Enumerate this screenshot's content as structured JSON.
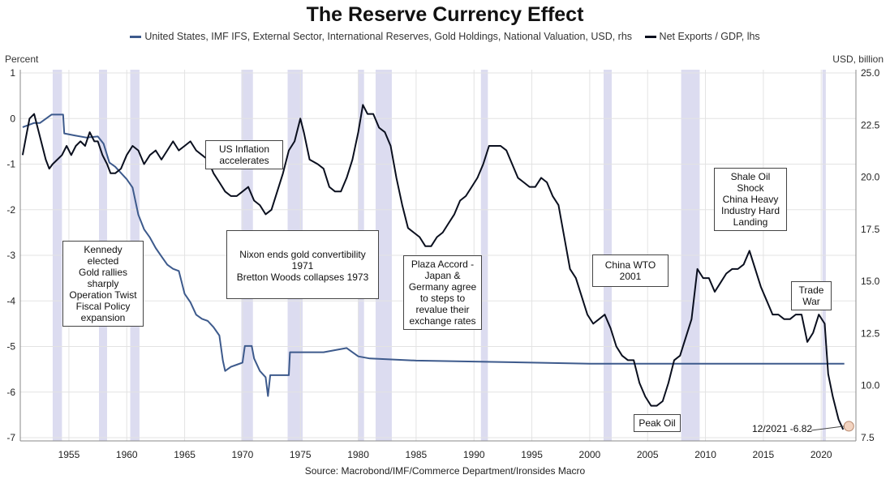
{
  "title": "The Reserve Currency Effect",
  "legend": {
    "series1": "United States, IMF IFS, External Sector, International Reserves, Gold Holdings, National Valuation, USD, rhs",
    "series2": "Net Exports / GDP, lhs"
  },
  "axes": {
    "left_unit": "Percent",
    "right_unit": "USD, billion",
    "left_ticks": [
      "1",
      "0",
      "-1",
      "-2",
      "-3",
      "-4",
      "-5",
      "-6",
      "-7"
    ],
    "right_ticks": [
      "25.0",
      "22.5",
      "20.0",
      "17.5",
      "15.0",
      "12.5",
      "10.0",
      "7.5"
    ],
    "x_ticks": [
      "1955",
      "1960",
      "1965",
      "1970",
      "1975",
      "1980",
      "1985",
      "1990",
      "1995",
      "2000",
      "2005",
      "2010",
      "2015",
      "2020"
    ]
  },
  "source": "Source: Macrobond/IMF/Commerce Department/Ironsides Macro",
  "annotations": {
    "kennedy": [
      "Kennedy elected",
      "Gold rallies",
      "sharply",
      "Operation Twist",
      "Fiscal Policy",
      "expansion"
    ],
    "inflation": [
      "US Inflation",
      "accelerates"
    ],
    "nixon": [
      "Nixon ends gold convertibility",
      "1971",
      "Bretton Woods collapses 1973"
    ],
    "plaza": [
      "Plaza Accord -",
      "Japan &",
      "Germany agree",
      "to steps to",
      "revalue their",
      "exchange rates"
    ],
    "china_wto": [
      "China WTO",
      "2001"
    ],
    "shale": [
      "Shale Oil",
      "Shock",
      "China Heavy",
      "Industry Hard",
      "Landing"
    ],
    "trade_war": [
      "Trade",
      "War"
    ],
    "peak_oil": [
      "Peak Oil"
    ],
    "end_label": "12/2021 -6.82"
  },
  "colors": {
    "gold_series": "#3d5a8c",
    "net_exports_series": "#0a0f1e",
    "recession_band": "#dcdcf0",
    "grid": "#e3e3e3",
    "end_marker": "#f2d3c0"
  },
  "chart_data": {
    "type": "line",
    "title": "The Reserve Currency Effect",
    "x_range": [
      1950.8,
      2023.0
    ],
    "left_ylim": [
      -7,
      1
    ],
    "right_ylim": [
      7.5,
      25.0
    ],
    "left_label": "Percent",
    "right_label": "USD, billion",
    "grid": true,
    "legend_position": "top",
    "recession_bands": [
      [
        1953.6,
        1954.4
      ],
      [
        1957.6,
        1958.3
      ],
      [
        1960.3,
        1961.1
      ],
      [
        1969.9,
        1970.9
      ],
      [
        1973.9,
        1975.2
      ],
      [
        1980.0,
        1980.5
      ],
      [
        1981.5,
        1982.9
      ],
      [
        1990.6,
        1991.2
      ],
      [
        2001.2,
        2001.9
      ],
      [
        2007.9,
        2009.5
      ],
      [
        2020.1,
        2020.4
      ]
    ],
    "series": [
      {
        "name": "United States, IMF IFS, External Sector, International Reserves, Gold Holdings, National Valuation, USD, rhs",
        "axis": "right",
        "points": [
          [
            1951.0,
            22.4
          ],
          [
            1952.0,
            22.6
          ],
          [
            1952.5,
            22.6
          ],
          [
            1953.5,
            23.0
          ],
          [
            1954.5,
            23.0
          ],
          [
            1954.6,
            22.1
          ],
          [
            1955.5,
            22.0
          ],
          [
            1956.5,
            21.9
          ],
          [
            1957.5,
            21.95
          ],
          [
            1958.0,
            21.6
          ],
          [
            1958.5,
            20.7
          ],
          [
            1959.0,
            20.5
          ],
          [
            1959.5,
            20.2
          ],
          [
            1960.0,
            19.9
          ],
          [
            1960.5,
            19.5
          ],
          [
            1961.0,
            18.2
          ],
          [
            1961.5,
            17.5
          ],
          [
            1962.0,
            17.1
          ],
          [
            1962.5,
            16.6
          ],
          [
            1963.0,
            16.2
          ],
          [
            1963.5,
            15.8
          ],
          [
            1964.0,
            15.6
          ],
          [
            1964.5,
            15.5
          ],
          [
            1965.0,
            14.4
          ],
          [
            1965.5,
            14.0
          ],
          [
            1966.0,
            13.4
          ],
          [
            1966.5,
            13.2
          ],
          [
            1967.0,
            13.1
          ],
          [
            1967.5,
            12.8
          ],
          [
            1968.0,
            12.4
          ],
          [
            1968.3,
            11.2
          ],
          [
            1968.5,
            10.7
          ],
          [
            1969.0,
            10.9
          ],
          [
            1969.5,
            11.0
          ],
          [
            1970.0,
            11.1
          ],
          [
            1970.2,
            11.9
          ],
          [
            1970.8,
            11.9
          ],
          [
            1971.0,
            11.3
          ],
          [
            1971.5,
            10.7
          ],
          [
            1972.0,
            10.4
          ],
          [
            1972.2,
            9.5
          ],
          [
            1972.4,
            10.5
          ],
          [
            1973.5,
            10.5
          ],
          [
            1974.0,
            10.5
          ],
          [
            1974.1,
            11.6
          ],
          [
            1975.0,
            11.6
          ],
          [
            1976.0,
            11.6
          ],
          [
            1977.0,
            11.6
          ],
          [
            1978.0,
            11.7
          ],
          [
            1979.0,
            11.8
          ],
          [
            1979.5,
            11.6
          ],
          [
            1980.0,
            11.4
          ],
          [
            1981.0,
            11.3
          ],
          [
            1985.0,
            11.2
          ],
          [
            1990.0,
            11.15
          ],
          [
            1995.0,
            11.1
          ],
          [
            2000.0,
            11.05
          ],
          [
            2005.0,
            11.05
          ],
          [
            2010.0,
            11.05
          ],
          [
            2015.0,
            11.05
          ],
          [
            2022.0,
            11.05
          ]
        ]
      },
      {
        "name": "Net Exports / GDP, lhs",
        "axis": "left",
        "points": [
          [
            1951.0,
            -0.8
          ],
          [
            1951.3,
            -0.4
          ],
          [
            1951.6,
            0.0
          ],
          [
            1952.0,
            0.1
          ],
          [
            1952.3,
            -0.2
          ],
          [
            1952.6,
            -0.5
          ],
          [
            1953.0,
            -0.9
          ],
          [
            1953.3,
            -1.1
          ],
          [
            1953.6,
            -1.0
          ],
          [
            1954.0,
            -0.9
          ],
          [
            1954.4,
            -0.8
          ],
          [
            1954.8,
            -0.6
          ],
          [
            1955.2,
            -0.8
          ],
          [
            1955.6,
            -0.6
          ],
          [
            1956.0,
            -0.5
          ],
          [
            1956.4,
            -0.6
          ],
          [
            1956.8,
            -0.3
          ],
          [
            1957.2,
            -0.5
          ],
          [
            1957.5,
            -0.5
          ],
          [
            1957.9,
            -0.8
          ],
          [
            1958.3,
            -1.0
          ],
          [
            1958.6,
            -1.2
          ],
          [
            1959.0,
            -1.2
          ],
          [
            1959.5,
            -1.1
          ],
          [
            1960.0,
            -0.8
          ],
          [
            1960.5,
            -0.6
          ],
          [
            1961.0,
            -0.7
          ],
          [
            1961.5,
            -1.0
          ],
          [
            1962.0,
            -0.8
          ],
          [
            1962.5,
            -0.7
          ],
          [
            1963.0,
            -0.9
          ],
          [
            1963.5,
            -0.7
          ],
          [
            1964.0,
            -0.5
          ],
          [
            1964.5,
            -0.7
          ],
          [
            1965.0,
            -0.6
          ],
          [
            1965.5,
            -0.5
          ],
          [
            1966.0,
            -0.7
          ],
          [
            1966.5,
            -0.8
          ],
          [
            1967.0,
            -0.9
          ],
          [
            1967.5,
            -1.2
          ],
          [
            1968.0,
            -1.4
          ],
          [
            1968.5,
            -1.6
          ],
          [
            1969.0,
            -1.7
          ],
          [
            1969.5,
            -1.7
          ],
          [
            1970.0,
            -1.6
          ],
          [
            1970.5,
            -1.5
          ],
          [
            1971.0,
            -1.8
          ],
          [
            1971.5,
            -1.9
          ],
          [
            1972.0,
            -2.1
          ],
          [
            1972.5,
            -2.0
          ],
          [
            1973.0,
            -1.6
          ],
          [
            1973.5,
            -1.2
          ],
          [
            1974.0,
            -0.7
          ],
          [
            1974.5,
            -0.5
          ],
          [
            1975.0,
            0.0
          ],
          [
            1975.3,
            -0.3
          ],
          [
            1975.8,
            -0.9
          ],
          [
            1976.5,
            -1.0
          ],
          [
            1977.0,
            -1.1
          ],
          [
            1977.5,
            -1.5
          ],
          [
            1978.0,
            -1.6
          ],
          [
            1978.5,
            -1.6
          ],
          [
            1979.0,
            -1.3
          ],
          [
            1979.5,
            -0.9
          ],
          [
            1980.0,
            -0.3
          ],
          [
            1980.4,
            0.3
          ],
          [
            1980.8,
            0.1
          ],
          [
            1981.3,
            0.1
          ],
          [
            1981.8,
            -0.2
          ],
          [
            1982.3,
            -0.3
          ],
          [
            1982.8,
            -0.6
          ],
          [
            1983.3,
            -1.3
          ],
          [
            1983.8,
            -1.9
          ],
          [
            1984.3,
            -2.4
          ],
          [
            1984.8,
            -2.5
          ],
          [
            1985.3,
            -2.6
          ],
          [
            1985.8,
            -2.8
          ],
          [
            1986.3,
            -2.8
          ],
          [
            1986.8,
            -2.6
          ],
          [
            1987.3,
            -2.5
          ],
          [
            1987.8,
            -2.3
          ],
          [
            1988.3,
            -2.1
          ],
          [
            1988.8,
            -1.8
          ],
          [
            1989.3,
            -1.7
          ],
          [
            1989.8,
            -1.5
          ],
          [
            1990.3,
            -1.3
          ],
          [
            1990.8,
            -1.0
          ],
          [
            1991.3,
            -0.6
          ],
          [
            1991.8,
            -0.6
          ],
          [
            1992.3,
            -0.6
          ],
          [
            1992.8,
            -0.7
          ],
          [
            1993.3,
            -1.0
          ],
          [
            1993.8,
            -1.3
          ],
          [
            1994.3,
            -1.4
          ],
          [
            1994.8,
            -1.5
          ],
          [
            1995.3,
            -1.5
          ],
          [
            1995.8,
            -1.3
          ],
          [
            1996.3,
            -1.4
          ],
          [
            1996.8,
            -1.7
          ],
          [
            1997.3,
            -1.9
          ],
          [
            1997.8,
            -2.6
          ],
          [
            1998.3,
            -3.3
          ],
          [
            1998.8,
            -3.5
          ],
          [
            1999.3,
            -3.9
          ],
          [
            1999.8,
            -4.3
          ],
          [
            2000.3,
            -4.5
          ],
          [
            2000.8,
            -4.4
          ],
          [
            2001.3,
            -4.3
          ],
          [
            2001.8,
            -4.6
          ],
          [
            2002.3,
            -5.0
          ],
          [
            2002.8,
            -5.2
          ],
          [
            2003.3,
            -5.3
          ],
          [
            2003.8,
            -5.3
          ],
          [
            2004.3,
            -5.8
          ],
          [
            2004.8,
            -6.1
          ],
          [
            2005.3,
            -6.3
          ],
          [
            2005.8,
            -6.3
          ],
          [
            2006.3,
            -6.2
          ],
          [
            2006.8,
            -5.8
          ],
          [
            2007.3,
            -5.3
          ],
          [
            2007.8,
            -5.2
          ],
          [
            2008.3,
            -4.8
          ],
          [
            2008.8,
            -4.4
          ],
          [
            2009.3,
            -3.3
          ],
          [
            2009.8,
            -3.5
          ],
          [
            2010.3,
            -3.5
          ],
          [
            2010.8,
            -3.8
          ],
          [
            2011.3,
            -3.6
          ],
          [
            2011.8,
            -3.4
          ],
          [
            2012.3,
            -3.3
          ],
          [
            2012.8,
            -3.3
          ],
          [
            2013.3,
            -3.2
          ],
          [
            2013.8,
            -2.9
          ],
          [
            2014.3,
            -3.3
          ],
          [
            2014.8,
            -3.7
          ],
          [
            2015.3,
            -4.0
          ],
          [
            2015.8,
            -4.3
          ],
          [
            2016.3,
            -4.3
          ],
          [
            2016.8,
            -4.4
          ],
          [
            2017.3,
            -4.4
          ],
          [
            2017.8,
            -4.3
          ],
          [
            2018.3,
            -4.3
          ],
          [
            2018.8,
            -4.9
          ],
          [
            2019.3,
            -4.7
          ],
          [
            2019.8,
            -4.3
          ],
          [
            2020.3,
            -4.5
          ],
          [
            2020.6,
            -5.6
          ],
          [
            2021.0,
            -6.1
          ],
          [
            2021.5,
            -6.6
          ],
          [
            2021.9,
            -6.82
          ]
        ]
      }
    ]
  }
}
